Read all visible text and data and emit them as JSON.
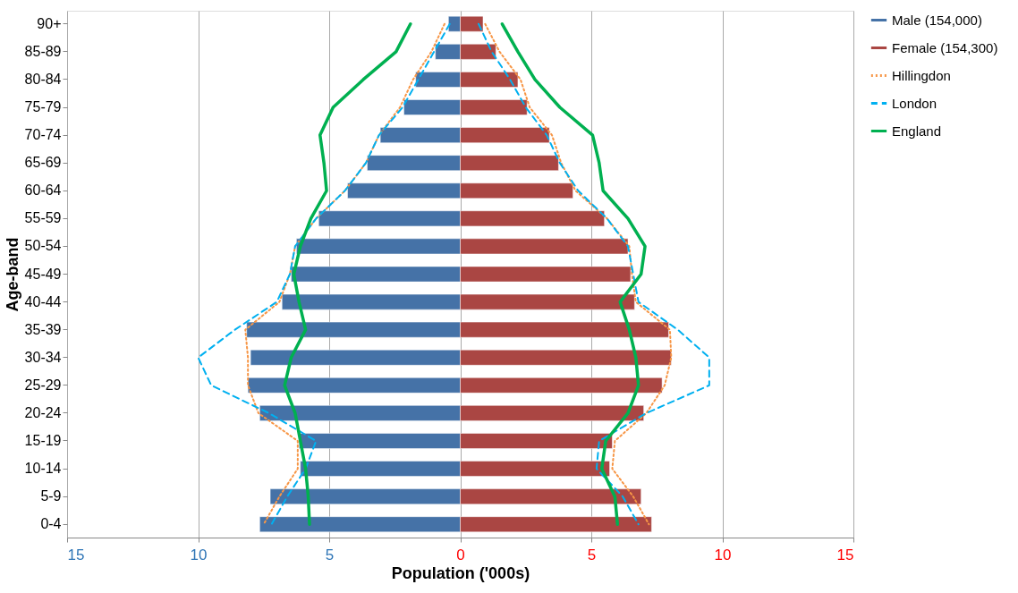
{
  "chart_data": {
    "type": "bar",
    "orientation": "horizontal",
    "xlabel": "Population ('000s)",
    "ylabel": "Age-band",
    "categories": [
      "90+",
      "85-89",
      "80-84",
      "75-79",
      "70-74",
      "65-69",
      "60-64",
      "55-59",
      "50-54",
      "45-49",
      "40-44",
      "35-39",
      "30-34",
      "25-29",
      "20-24",
      "15-19",
      "10-14",
      "5-9",
      "0-4"
    ],
    "xlim": [
      -15,
      15
    ],
    "xticks": [
      {
        "value": -15,
        "label": "15"
      },
      {
        "value": -10,
        "label": "10"
      },
      {
        "value": -5,
        "label": "5"
      },
      0,
      5,
      10,
      15
    ],
    "grid": "x",
    "legend": "right",
    "stacked": true,
    "series": [
      {
        "name": "Male (154,000)",
        "color": "#4572a7",
        "values": [
          -0.45,
          -0.95,
          -1.7,
          -2.15,
          -3.05,
          -3.55,
          -4.3,
          -5.4,
          -6.25,
          -6.45,
          -6.8,
          -8.15,
          -8.0,
          -8.1,
          -7.65,
          -6.15,
          -6.1,
          -7.25,
          -7.65
        ]
      },
      {
        "name": "Female (154,300)",
        "color": "#aa4643",
        "values": [
          0.87,
          1.36,
          2.2,
          2.55,
          3.4,
          3.75,
          4.3,
          5.5,
          6.4,
          6.5,
          6.65,
          7.95,
          8.05,
          7.7,
          7.0,
          5.8,
          5.7,
          6.9,
          7.3
        ]
      },
      {
        "name": "Hillingdon",
        "color": "#f79646",
        "type": "line",
        "line_style": "dotted",
        "values": [
          -0.6,
          -1.1,
          -1.8,
          -2.3,
          -3.1,
          -3.6,
          -4.4,
          -5.5,
          -6.3,
          -6.5,
          -6.9,
          -8.2,
          -8.1,
          -8.1,
          -7.7,
          -6.2,
          -6.2,
          -6.9,
          -7.5
        ]
      },
      {
        "color": "#f79646",
        "type": "line",
        "line_style": "dotted",
        "values": [
          0.95,
          1.5,
          2.3,
          2.65,
          3.5,
          3.85,
          4.4,
          5.6,
          6.45,
          6.55,
          6.7,
          8.0,
          8.05,
          7.8,
          7.1,
          5.9,
          5.8,
          6.6,
          7.2
        ]
      },
      {
        "name": "London",
        "color": "#00b0f0",
        "type": "line",
        "line_style": "dashed",
        "values": [
          -0.4,
          -1.0,
          -1.6,
          -2.2,
          -3.1,
          -3.6,
          -4.4,
          -5.5,
          -6.3,
          -6.5,
          -7.0,
          -8.6,
          -10.0,
          -9.5,
          -7.3,
          -5.5,
          -5.9,
          -6.6,
          -7.2
        ]
      },
      {
        "color": "#00b0f0",
        "type": "line",
        "line_style": "dashed",
        "values": [
          0.7,
          1.2,
          1.9,
          2.5,
          3.3,
          3.8,
          4.5,
          5.6,
          6.4,
          6.6,
          6.8,
          8.3,
          9.5,
          9.5,
          7.1,
          5.3,
          5.2,
          6.2,
          6.8
        ]
      },
      {
        "name": "England",
        "color": "#00b050",
        "type": "line",
        "line_style": "solid",
        "values": [
          -1.9,
          -2.45,
          -3.7,
          -4.85,
          -5.35,
          -5.2,
          -5.1,
          -5.7,
          -6.1,
          -6.35,
          -6.15,
          -5.9,
          -6.45,
          -6.7,
          -6.3,
          -6.1,
          -5.9,
          -5.8,
          -5.75
        ]
      },
      {
        "color": "#00b050",
        "type": "line",
        "line_style": "solid",
        "values": [
          1.6,
          2.2,
          2.85,
          3.8,
          5.05,
          5.3,
          5.45,
          6.4,
          7.05,
          6.9,
          6.1,
          6.45,
          6.7,
          6.8,
          6.4,
          5.55,
          5.4,
          5.9,
          6.0
        ]
      }
    ]
  }
}
